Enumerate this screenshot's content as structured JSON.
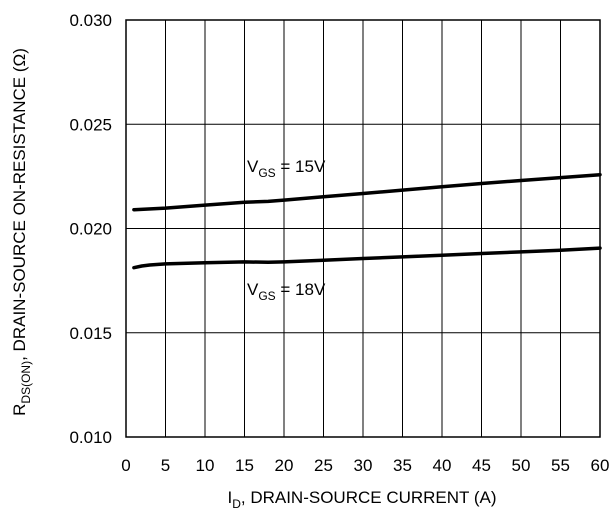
{
  "chart_data": {
    "type": "line",
    "xlabel": {
      "main": "I",
      "sub": "D",
      "rest": ", DRAIN-SOURCE CURRENT (A)"
    },
    "ylabel": {
      "main": "R",
      "sub": "DS(ON)",
      "rest": ", DRAIN-SOURCE ON-RESISTANCE (Ω)"
    },
    "xlim": [
      0,
      60
    ],
    "ylim": [
      0.01,
      0.03
    ],
    "xticks": [
      "0",
      "5",
      "10",
      "15",
      "20",
      "25",
      "30",
      "35",
      "40",
      "45",
      "50",
      "55",
      "60"
    ],
    "yticks": [
      "0.010",
      "0.015",
      "0.020",
      "0.025",
      "0.030"
    ],
    "grid": true,
    "series": [
      {
        "name": "VGS = 15V",
        "x": [
          1,
          5,
          10,
          15,
          18,
          20,
          25,
          30,
          35,
          40,
          45,
          50,
          55,
          60
        ],
        "y": [
          0.0209,
          0.02098,
          0.02112,
          0.02126,
          0.0213,
          0.02136,
          0.02152,
          0.02168,
          0.02184,
          0.022,
          0.02216,
          0.0223,
          0.02244,
          0.02258
        ]
      },
      {
        "name": "VGS = 18V",
        "x": [
          1,
          2,
          3,
          5,
          10,
          15,
          18,
          20,
          25,
          30,
          35,
          40,
          45,
          50,
          55,
          60
        ],
        "y": [
          0.01812,
          0.0182,
          0.01825,
          0.0183,
          0.01836,
          0.0184,
          0.01838,
          0.0184,
          0.01848,
          0.01856,
          0.01864,
          0.01872,
          0.0188,
          0.01888,
          0.01896,
          0.01906
        ]
      }
    ],
    "annotations": [
      {
        "main": "V",
        "sub": "GS",
        "rest": " = 15V"
      },
      {
        "main": "V",
        "sub": "GS",
        "rest": " = 18V"
      }
    ]
  }
}
